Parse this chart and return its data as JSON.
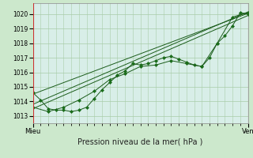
{
  "title": "Pression niveau de la mer( hPa )",
  "xlabel_left": "Mieu",
  "xlabel_right": "Ven",
  "ylim": [
    1012.5,
    1020.75
  ],
  "xlim": [
    0,
    84
  ],
  "yticks": [
    1013,
    1014,
    1015,
    1016,
    1017,
    1018,
    1019,
    1020
  ],
  "bg_color": "#cce8cc",
  "plot_bg": "#d8eee8",
  "grid_color": "#a8cca8",
  "line_color": "#1a5c1a",
  "marker_color": "#1a6c1a",
  "vline_color": "#cc3333",
  "line1_x": [
    0,
    3,
    6,
    9,
    12,
    15,
    18,
    21,
    24,
    27,
    30,
    33,
    36,
    39,
    42,
    45,
    48,
    51,
    54,
    57,
    60,
    63,
    66,
    69,
    72,
    75,
    78,
    81,
    84
  ],
  "line1_y": [
    1014.6,
    1014.1,
    1013.5,
    1013.4,
    1013.4,
    1013.3,
    1013.4,
    1013.6,
    1014.2,
    1014.8,
    1015.3,
    1015.8,
    1016.1,
    1016.6,
    1016.5,
    1016.6,
    1016.8,
    1017.0,
    1017.1,
    1016.9,
    1016.7,
    1016.5,
    1016.4,
    1017.0,
    1018.0,
    1018.5,
    1019.2,
    1020.1,
    1020.0
  ],
  "line2_x": [
    0,
    6,
    12,
    18,
    24,
    30,
    36,
    42,
    48,
    54,
    60,
    66,
    72,
    78,
    84
  ],
  "line2_y": [
    1013.6,
    1013.3,
    1013.6,
    1014.1,
    1014.7,
    1015.5,
    1015.9,
    1016.4,
    1016.5,
    1016.8,
    1016.6,
    1016.4,
    1018.0,
    1019.8,
    1020.1
  ],
  "line3_x": [
    0,
    84
  ],
  "line3_y": [
    1013.5,
    1019.9
  ],
  "line4_x": [
    0,
    84
  ],
  "line4_y": [
    1013.8,
    1020.15
  ],
  "line5_x": [
    0,
    84
  ],
  "line5_y": [
    1014.5,
    1020.05
  ]
}
